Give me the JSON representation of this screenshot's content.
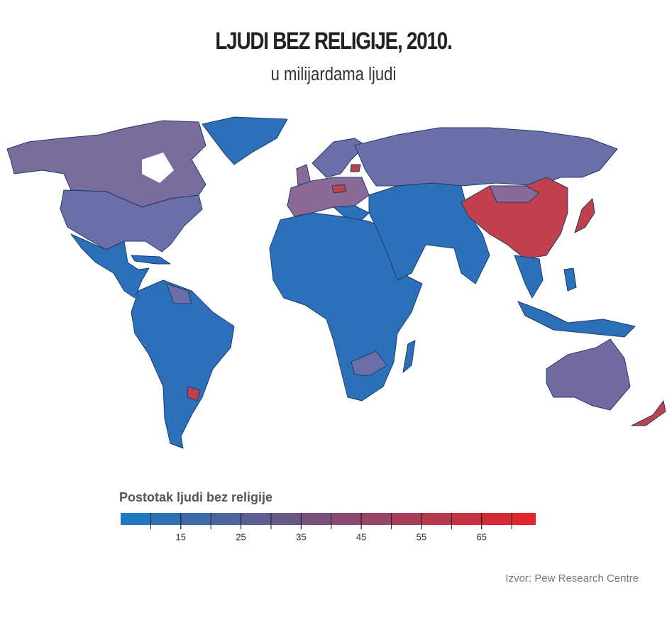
{
  "title": "LJUDI BEZ RELIGIJE, 2010.",
  "subtitle": "u milijardama ljudi",
  "legend": {
    "title": "Postotak ljudi bez religije",
    "min": 5,
    "max": 74,
    "step": 5,
    "colors": [
      "#1f78c1",
      "#e3262b"
    ],
    "ticks": [
      15,
      25,
      35,
      45,
      55,
      65
    ]
  },
  "source": "Izvor: Pew Research Centre"
}
